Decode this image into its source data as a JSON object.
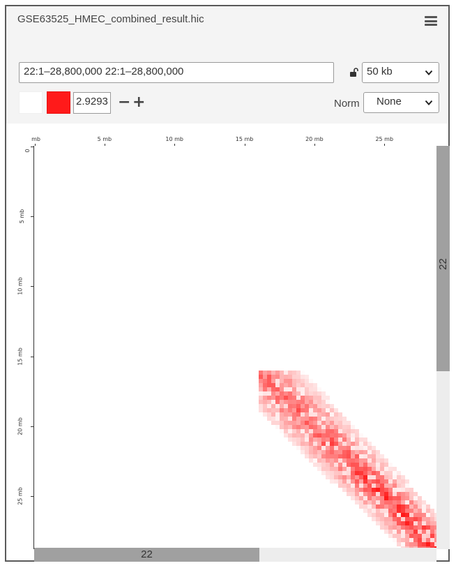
{
  "panel": {
    "title": "GSE63525_HMEC_combined_result.hic"
  },
  "locus": {
    "value": "22:1–28,800,000 22:1–28,800,000"
  },
  "resolution": {
    "selected": "50 kb"
  },
  "color": {
    "low_color": "#ffffff",
    "high_color": "#ff1a1a",
    "score_value": "2.9293"
  },
  "controls": {
    "minus_label": "−",
    "plus_label": "+"
  },
  "normalization": {
    "label": "Norm",
    "selected": "None"
  },
  "ruler_x": {
    "ticks": [
      "mb",
      "5 mb",
      "10 mb",
      "15 mb",
      "20 mb",
      "25 mb"
    ]
  },
  "ruler_y": {
    "ticks": [
      "0 mb",
      "5 mb",
      "10 mb",
      "15 mb",
      "20 mb",
      "25 mb"
    ]
  },
  "tracks": {
    "x_chrom": "22",
    "y_chrom": "22"
  },
  "icons": [
    "menu-icon",
    "unlock-icon",
    "chevron-down-icon"
  ]
}
